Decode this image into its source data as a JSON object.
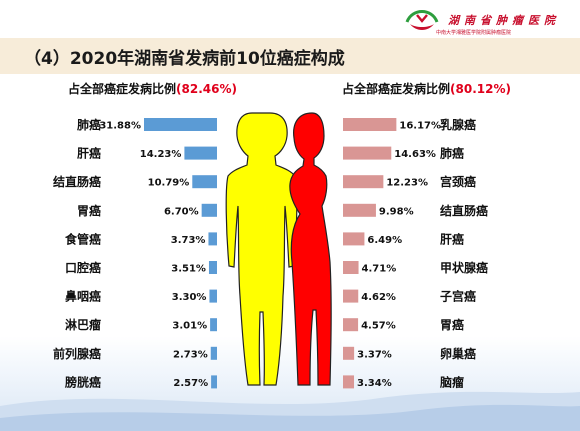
{
  "title": "（4）2020年湖南省发病前10位癌症构成",
  "hospital": {
    "name": "湖南省肿瘤医院",
    "subtitle": "中南大学湘雅医学院附属肿瘤医院"
  },
  "colors": {
    "male_bar": "#5b9bd5",
    "female_bar": "#d99694",
    "male_figure": "#ffff00",
    "female_figure": "#ff0000",
    "header_band": "#f7ecd9"
  },
  "male_subtitle": {
    "prefix": "占全部癌症发病比例",
    "pct": "(82.46%)"
  },
  "female_subtitle": {
    "prefix": "占全部癌症发病比例",
    "pct": "(80.12%)"
  },
  "chart_data": [
    {
      "type": "bar",
      "orientation": "horizontal",
      "direction": "right-to-left",
      "color": "#5b9bd5",
      "title": "占全部癌症发病比例(82.46%)",
      "categories": [
        "肺癌",
        "肝癌",
        "结直肠癌",
        "胃癌",
        "食管癌",
        "口腔癌",
        "鼻咽癌",
        "淋巴瘤",
        "前列腺癌",
        "膀胱癌"
      ],
      "values": [
        31.88,
        14.23,
        10.79,
        6.7,
        3.73,
        3.51,
        3.3,
        3.01,
        2.73,
        2.57
      ],
      "labels": [
        "31.88%",
        "14.23%",
        "10.79%",
        "6.70%",
        "3.73%",
        "3.51%",
        "3.30%",
        "3.01%",
        "2.73%",
        "2.57%"
      ]
    },
    {
      "type": "bar",
      "orientation": "horizontal",
      "direction": "left-to-right",
      "color": "#d99694",
      "title": "占全部癌症发病比例(80.12%)",
      "categories": [
        "乳腺癌",
        "肺癌",
        "宫颈癌",
        "结直肠癌",
        "肝癌",
        "甲状腺癌",
        "子宫癌",
        "胃癌",
        "卵巢癌",
        "脑瘤"
      ],
      "values": [
        16.17,
        14.63,
        12.23,
        9.98,
        6.49,
        4.71,
        4.62,
        4.57,
        3.37,
        3.34
      ],
      "labels": [
        "16.17%",
        "14.63%",
        "12.23%",
        "9.98%",
        "6.49%",
        "4.71%",
        "4.62%",
        "4.57%",
        "3.37%",
        "3.34%"
      ]
    }
  ]
}
